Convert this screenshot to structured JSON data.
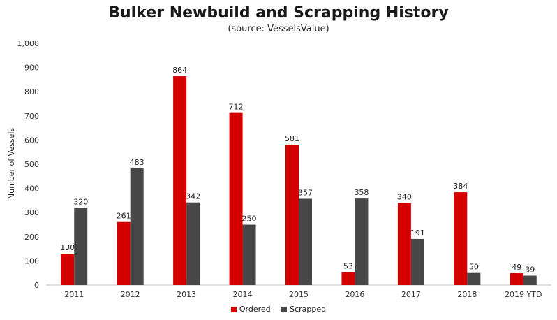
{
  "chart_data": {
    "type": "bar",
    "title": "Bulker Newbuild and Scrapping History",
    "subtitle": "(source: VesselsValue)",
    "ylabel": "Number  of Vessels",
    "xlabel": "",
    "categories": [
      "2011",
      "2012",
      "2013",
      "2014",
      "2015",
      "2016",
      "2017",
      "2018",
      "2019 YTD"
    ],
    "series": [
      {
        "name": "Ordered",
        "color": "#d40000",
        "values": [
          130,
          261,
          864,
          712,
          581,
          53,
          340,
          384,
          49
        ]
      },
      {
        "name": "Scrapped",
        "color": "#474747",
        "values": [
          320,
          483,
          342,
          250,
          357,
          358,
          191,
          50,
          39
        ]
      }
    ],
    "ylim": [
      0,
      1000
    ],
    "yticks": [
      "0",
      "100",
      "200",
      "300",
      "400",
      "500",
      "600",
      "700",
      "800",
      "900",
      "1,000"
    ],
    "grid": false,
    "legend_position": "bottom"
  }
}
